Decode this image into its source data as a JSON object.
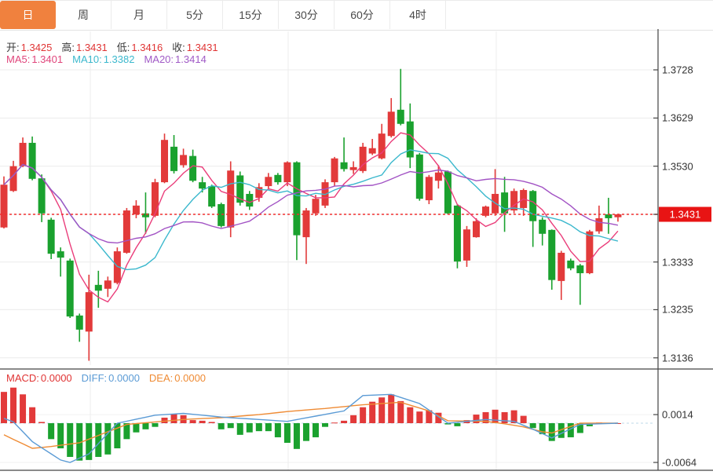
{
  "tabs": {
    "items": [
      {
        "label": "日",
        "active": true
      },
      {
        "label": "周",
        "active": false
      },
      {
        "label": "月",
        "active": false
      },
      {
        "label": "5分",
        "active": false
      },
      {
        "label": "15分",
        "active": false
      },
      {
        "label": "30分",
        "active": false
      },
      {
        "label": "60分",
        "active": false
      },
      {
        "label": "4时",
        "active": false
      }
    ]
  },
  "info": {
    "ohlc": [
      {
        "label": "开:",
        "value": "1.3425"
      },
      {
        "label": "高:",
        "value": "1.3431"
      },
      {
        "label": "低:",
        "value": "1.3416"
      },
      {
        "label": "收:",
        "value": "1.3431"
      }
    ],
    "ma": [
      {
        "label": "MA5:",
        "value": "1.3401",
        "color": "#e0457b"
      },
      {
        "label": "MA10:",
        "value": "1.3382",
        "color": "#3bb8cd"
      },
      {
        "label": "MA20:",
        "value": "1.3414",
        "color": "#a05ac6"
      }
    ],
    "macd": [
      {
        "label": "MACD:",
        "value": "0.0000",
        "color": "#e03434"
      },
      {
        "label": "DIFF:",
        "value": "0.0000",
        "color": "#5b9bd5"
      },
      {
        "label": "DEA:",
        "value": "0.0000",
        "color": "#ef8b34"
      }
    ]
  },
  "last_price": "1.3431",
  "colors": {
    "up": "#e23a3a",
    "down": "#1aa12e",
    "ma5": "#ea3d7a",
    "ma10": "#3bb8cd",
    "ma20": "#a253c4",
    "diff": "#5b9bd5",
    "dea": "#ef8b34",
    "tag_bg": "#e81414",
    "tab_active": "#f0813e",
    "dashed_line": "#f03030",
    "grid": "#ececec",
    "axis": "#444444"
  },
  "chart_data": {
    "type": "candlestick+macd",
    "price_axis_labels": [
      "1.3728",
      "1.3629",
      "1.3530",
      "1.3431",
      "1.3333",
      "1.3235",
      "1.3136"
    ],
    "price_axis_values": [
      1.3728,
      1.3629,
      1.353,
      1.3431,
      1.3333,
      1.3235,
      1.3136
    ],
    "macd_axis_labels": [
      "0.0014",
      "-0.0064"
    ],
    "macd_axis_values": [
      0.0014,
      -0.0064
    ],
    "last_price": 1.3431,
    "candles_format": [
      "open",
      "high",
      "low",
      "close"
    ],
    "candles": [
      [
        1.3404,
        1.3509,
        1.3402,
        1.3492
      ],
      [
        1.3479,
        1.3541,
        1.3477,
        1.353
      ],
      [
        1.353,
        1.3589,
        1.3528,
        1.3578
      ],
      [
        1.3578,
        1.3591,
        1.3501,
        1.3504
      ],
      [
        1.3505,
        1.3513,
        1.3415,
        1.3433
      ],
      [
        1.342,
        1.3424,
        1.3339,
        1.335
      ],
      [
        1.3355,
        1.3363,
        1.3303,
        1.3342
      ],
      [
        1.3336,
        1.334,
        1.3218,
        1.3221
      ],
      [
        1.3223,
        1.3227,
        1.3169,
        1.3194
      ],
      [
        1.319,
        1.3307,
        1.313,
        1.3271
      ],
      [
        1.3286,
        1.3315,
        1.3239,
        1.3274
      ],
      [
        1.3278,
        1.3303,
        1.3261,
        1.3295
      ],
      [
        1.329,
        1.3363,
        1.3287,
        1.3355
      ],
      [
        1.3352,
        1.3444,
        1.335,
        1.3439
      ],
      [
        1.3431,
        1.346,
        1.3423,
        1.3449
      ],
      [
        1.3433,
        1.3476,
        1.3391,
        1.3425
      ],
      [
        1.3428,
        1.3504,
        1.3425,
        1.3497
      ],
      [
        1.3497,
        1.3597,
        1.3495,
        1.3584
      ],
      [
        1.357,
        1.3594,
        1.3515,
        1.352
      ],
      [
        1.3532,
        1.3566,
        1.3527,
        1.3553
      ],
      [
        1.3551,
        1.3564,
        1.3497,
        1.35
      ],
      [
        1.3497,
        1.3508,
        1.3476,
        1.3484
      ],
      [
        1.3489,
        1.3492,
        1.3444,
        1.3447
      ],
      [
        1.3452,
        1.3455,
        1.3404,
        1.3407
      ],
      [
        1.3404,
        1.354,
        1.3384,
        1.3521
      ],
      [
        1.3511,
        1.3519,
        1.3449,
        1.3455
      ],
      [
        1.3473,
        1.3479,
        1.344,
        1.3447
      ],
      [
        1.3465,
        1.3495,
        1.3457,
        1.3487
      ],
      [
        1.3489,
        1.3516,
        1.3484,
        1.3508
      ],
      [
        1.3512,
        1.3516,
        1.3492,
        1.3497
      ],
      [
        1.3497,
        1.354,
        1.3489,
        1.3538
      ],
      [
        1.3538,
        1.354,
        1.3337,
        1.3388
      ],
      [
        1.3384,
        1.3444,
        1.3329,
        1.3439
      ],
      [
        1.3433,
        1.3471,
        1.3428,
        1.3463
      ],
      [
        1.3449,
        1.3503,
        1.3444,
        1.3497
      ],
      [
        1.3497,
        1.3549,
        1.3489,
        1.3546
      ],
      [
        1.3538,
        1.3589,
        1.3519,
        1.3524
      ],
      [
        1.3522,
        1.354,
        1.3514,
        1.3528
      ],
      [
        1.352,
        1.3578,
        1.3516,
        1.357
      ],
      [
        1.3556,
        1.3586,
        1.3553,
        1.3567
      ],
      [
        1.3546,
        1.3617,
        1.3544,
        1.3597
      ],
      [
        1.3592,
        1.367,
        1.3589,
        1.3642
      ],
      [
        1.3646,
        1.373,
        1.3614,
        1.3617
      ],
      [
        1.3622,
        1.3659,
        1.3526,
        1.3548
      ],
      [
        1.3554,
        1.3557,
        1.3459,
        1.3463
      ],
      [
        1.346,
        1.3512,
        1.3452,
        1.3508
      ],
      [
        1.35,
        1.3532,
        1.3484,
        1.3517
      ],
      [
        1.3519,
        1.3521,
        1.3431,
        1.3433
      ],
      [
        1.3449,
        1.3452,
        1.332,
        1.3334
      ],
      [
        1.3336,
        1.3407,
        1.3323,
        1.34
      ],
      [
        1.3384,
        1.3423,
        1.3383,
        1.3417
      ],
      [
        1.3428,
        1.3449,
        1.3425,
        1.3447
      ],
      [
        1.3433,
        1.3524,
        1.3428,
        1.3473
      ],
      [
        1.3476,
        1.3508,
        1.3395,
        1.3433
      ],
      [
        1.3439,
        1.3484,
        1.3433,
        1.3479
      ],
      [
        1.3444,
        1.3484,
        1.3428,
        1.3481
      ],
      [
        1.3479,
        1.3481,
        1.3364,
        1.3417
      ],
      [
        1.342,
        1.3425,
        1.3367,
        1.3391
      ],
      [
        1.3399,
        1.34,
        1.3276,
        1.3296
      ],
      [
        1.3294,
        1.3356,
        1.3255,
        1.3352
      ],
      [
        1.3336,
        1.334,
        1.3316,
        1.332
      ],
      [
        1.3326,
        1.3329,
        1.3245,
        1.331
      ],
      [
        1.331,
        1.3399,
        1.3308,
        1.3396
      ],
      [
        1.3396,
        1.3449,
        1.3391,
        1.3423
      ],
      [
        1.3431,
        1.3465,
        1.3391,
        1.3423
      ],
      [
        1.3425,
        1.3431,
        1.3416,
        1.3431
      ]
    ],
    "moving_averages": {
      "ma5_last": 1.3401,
      "ma10_last": 1.3382,
      "ma20_last": 1.3414
    },
    "macd": {
      "histogram": [
        0.0051,
        0.0058,
        0.0047,
        0.0026,
        0.0002,
        -0.0026,
        -0.0041,
        -0.0055,
        -0.0061,
        -0.006,
        -0.0055,
        -0.0051,
        -0.0041,
        -0.0026,
        -0.0015,
        -0.001,
        -0.0006,
        0.0009,
        0.0015,
        0.0013,
        0.0005,
        0.0004,
        0.0002,
        -0.001,
        -0.0008,
        -0.0019,
        -0.0015,
        -0.0013,
        -0.0013,
        -0.0023,
        -0.0032,
        -0.0042,
        -0.0029,
        -0.0023,
        -0.0006,
        0.0001,
        0.0004,
        0.0013,
        0.0026,
        0.0035,
        0.0042,
        0.0047,
        0.0036,
        0.0026,
        0.0019,
        0.0021,
        0.0017,
        -0.0002,
        -0.0005,
        0.0005,
        0.0014,
        0.0018,
        0.0022,
        0.0018,
        0.0021,
        0.0012,
        -0.0008,
        -0.0018,
        -0.0029,
        -0.0024,
        -0.0023,
        -0.0016,
        -0.0005,
        0.0001,
        0.0,
        0.0
      ],
      "diff_points": [
        [
          0,
          0.0008
        ],
        [
          1,
          0.0002
        ],
        [
          3,
          -0.003
        ],
        [
          6,
          -0.006
        ],
        [
          7,
          -0.0064
        ],
        [
          9,
          -0.005
        ],
        [
          12,
          0.0
        ],
        [
          16,
          0.0013
        ],
        [
          19,
          0.0016
        ],
        [
          23,
          0.001
        ],
        [
          30,
          0.0003
        ],
        [
          36,
          0.002
        ],
        [
          38,
          0.0045
        ],
        [
          41,
          0.0047
        ],
        [
          44,
          0.0032
        ],
        [
          47,
          0.0
        ],
        [
          51,
          0.0006
        ],
        [
          54,
          0.0003
        ],
        [
          56,
          -0.001
        ],
        [
          58,
          -0.0024
        ],
        [
          61,
          -0.0002
        ],
        [
          65,
          0.0
        ]
      ],
      "dea_points": [
        [
          0,
          -0.0019
        ],
        [
          3,
          -0.0041
        ],
        [
          5,
          -0.0038
        ],
        [
          8,
          -0.0032
        ],
        [
          13,
          -0.0002
        ],
        [
          16,
          0.0002
        ],
        [
          19,
          0.0006
        ],
        [
          23,
          0.0009
        ],
        [
          27,
          0.0014
        ],
        [
          30,
          0.0019
        ],
        [
          34,
          0.0024
        ],
        [
          38,
          0.003
        ],
        [
          42,
          0.0034
        ],
        [
          45,
          0.002
        ],
        [
          47,
          0.0004
        ],
        [
          51,
          0.0003
        ],
        [
          53,
          -0.0001
        ],
        [
          55,
          -0.0006
        ],
        [
          57,
          -0.0014
        ],
        [
          58,
          -0.0016
        ],
        [
          61,
          0.0
        ],
        [
          65,
          0.0
        ]
      ],
      "macd_last": 0.0,
      "diff_last": 0.0,
      "dea_last": 0.0
    }
  }
}
